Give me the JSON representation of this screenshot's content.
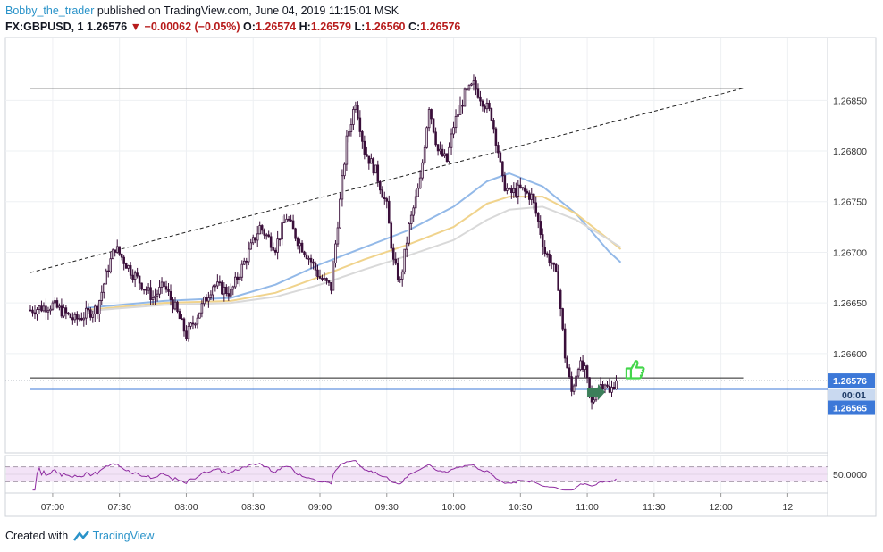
{
  "header": {
    "author": "Bobby_the_trader",
    "published": "published on TradingView.com, June 04, 2019 11:15:01 MSK",
    "symbol": "FX:GBPUSD, 1",
    "last": "1.26576",
    "change": "−0.00062 (−0.05%)",
    "open_label": "O:",
    "open": "1.26574",
    "high_label": "H:",
    "high": "1.26579",
    "low_label": "L:",
    "low": "1.26560",
    "close_label": "C:",
    "close": "1.26576"
  },
  "footer": {
    "created_with": "Created with",
    "brand": "TradingView"
  },
  "colors": {
    "candle_up": "#ffffff",
    "candle_down": "#3a0f3a",
    "wick": "#3a0f3a",
    "ma_fast": "#93b9e8",
    "ma_mid": "#f0d38c",
    "ma_slow": "#d9d9d9",
    "price_line": "#3c78d8",
    "rsi_line": "#8e2aa0",
    "rsi_band": "#f3e3f7",
    "thumb": "#43d64b",
    "marker": "#3c7f5a"
  },
  "chart_data": {
    "type": "candlestick",
    "y_axis_labels": [
      "1.26850",
      "1.26800",
      "1.26750",
      "1.26700",
      "1.26650",
      "1.26600"
    ],
    "ylim": [
      1.26502,
      1.26912
    ],
    "x_axis_labels": [
      "07:00",
      "07:30",
      "08:00",
      "08:30",
      "09:00",
      "09:30",
      "10:00",
      "10:30",
      "11:00",
      "11:30",
      "12:00",
      "12"
    ],
    "last_price_badge": "1.26576",
    "countdown_badge": "00:01",
    "horizontal_line_badge": "1.26565",
    "rsi_label": "50.0000",
    "rsi_range": [
      0,
      100
    ],
    "rsi_bands": [
      30,
      70
    ],
    "close_anchors": [
      [
        "06:50",
        1.26643
      ],
      [
        "07:00",
        1.26648
      ],
      [
        "07:10",
        1.26633
      ],
      [
        "07:20",
        1.26645
      ],
      [
        "07:25",
        1.26685
      ],
      [
        "07:28",
        1.26705
      ],
      [
        "07:35",
        1.26682
      ],
      [
        "07:45",
        1.26655
      ],
      [
        "07:50",
        1.26667
      ],
      [
        "07:55",
        1.26645
      ],
      [
        "08:00",
        1.26618
      ],
      [
        "08:05",
        1.26638
      ],
      [
        "08:12",
        1.26668
      ],
      [
        "08:20",
        1.2666
      ],
      [
        "08:25",
        1.26685
      ],
      [
        "08:33",
        1.26725
      ],
      [
        "08:40",
        1.26705
      ],
      [
        "08:45",
        1.26735
      ],
      [
        "08:50",
        1.26712
      ],
      [
        "08:55",
        1.26695
      ],
      [
        "09:00",
        1.26675
      ],
      [
        "09:05",
        1.26665
      ],
      [
        "09:08",
        1.2673
      ],
      [
        "09:12",
        1.2681
      ],
      [
        "09:16",
        1.2685
      ],
      [
        "09:20",
        1.268
      ],
      [
        "09:25",
        1.2678
      ],
      [
        "09:30",
        1.26745
      ],
      [
        "09:33",
        1.2669
      ],
      [
        "09:36",
        1.2667
      ],
      [
        "09:40",
        1.26725
      ],
      [
        "09:45",
        1.2677
      ],
      [
        "09:49",
        1.26845
      ],
      [
        "09:53",
        1.268
      ],
      [
        "09:57",
        1.2679
      ],
      [
        "10:00",
        1.26825
      ],
      [
        "10:05",
        1.26855
      ],
      [
        "10:09",
        1.26865
      ],
      [
        "10:13",
        1.2685
      ],
      [
        "10:17",
        1.26835
      ],
      [
        "10:20",
        1.268
      ],
      [
        "10:22",
        1.2677
      ],
      [
        "10:25",
        1.26758
      ],
      [
        "10:30",
        1.26762
      ],
      [
        "10:35",
        1.26755
      ],
      [
        "10:38",
        1.2673
      ],
      [
        "10:41",
        1.267
      ],
      [
        "10:44",
        1.2669
      ],
      [
        "10:47",
        1.26668
      ],
      [
        "10:50",
        1.26598
      ],
      [
        "10:53",
        1.26562
      ],
      [
        "10:56",
        1.2659
      ],
      [
        "10:59",
        1.26582
      ],
      [
        "11:02",
        1.2655
      ],
      [
        "11:05",
        1.26568
      ],
      [
        "11:08",
        1.26572
      ],
      [
        "11:10",
        1.2656
      ],
      [
        "11:13",
        1.26576
      ]
    ],
    "moving_averages": [
      {
        "name": "",
        "color": "#93b9e8",
        "points": [
          [
            "07:15",
            1.26645
          ],
          [
            "07:50",
            1.26652
          ],
          [
            "08:20",
            1.26655
          ],
          [
            "08:40",
            1.26668
          ],
          [
            "09:00",
            1.26688
          ],
          [
            "09:20",
            1.26705
          ],
          [
            "09:40",
            1.26722
          ],
          [
            "10:00",
            1.26745
          ],
          [
            "10:15",
            1.2677
          ],
          [
            "10:25",
            1.26778
          ],
          [
            "10:40",
            1.26765
          ],
          [
            "10:55",
            1.26738
          ],
          [
            "11:10",
            1.267
          ],
          [
            "11:15",
            1.2669
          ]
        ]
      },
      {
        "name": "",
        "color": "#f0d38c",
        "points": [
          [
            "07:15",
            1.26643
          ],
          [
            "07:50",
            1.2665
          ],
          [
            "08:20",
            1.26652
          ],
          [
            "08:40",
            1.2666
          ],
          [
            "09:00",
            1.26676
          ],
          [
            "09:20",
            1.26693
          ],
          [
            "09:40",
            1.26708
          ],
          [
            "10:00",
            1.26725
          ],
          [
            "10:15",
            1.26748
          ],
          [
            "10:25",
            1.26755
          ],
          [
            "10:40",
            1.26755
          ],
          [
            "10:55",
            1.26738
          ],
          [
            "11:10",
            1.26712
          ],
          [
            "11:15",
            1.26703
          ]
        ]
      },
      {
        "name": "",
        "color": "#d9d9d9",
        "points": [
          [
            "07:15",
            1.26642
          ],
          [
            "07:50",
            1.26648
          ],
          [
            "08:20",
            1.2665
          ],
          [
            "08:40",
            1.26656
          ],
          [
            "09:00",
            1.26668
          ],
          [
            "09:20",
            1.26683
          ],
          [
            "09:40",
            1.26697
          ],
          [
            "10:00",
            1.26712
          ],
          [
            "10:15",
            1.26732
          ],
          [
            "10:25",
            1.26742
          ],
          [
            "10:40",
            1.26745
          ],
          [
            "10:55",
            1.26732
          ],
          [
            "11:10",
            1.26712
          ],
          [
            "11:15",
            1.26705
          ]
        ]
      }
    ],
    "trendlines": [
      {
        "style": "solid",
        "points": [
          [
            "06:50",
            1.26862
          ],
          [
            "12:10",
            1.26862
          ]
        ]
      },
      {
        "style": "dashed",
        "points": [
          [
            "06:50",
            1.2668
          ],
          [
            "12:10",
            1.26862
          ]
        ]
      },
      {
        "style": "solid",
        "points": [
          [
            "06:50",
            1.26576
          ],
          [
            "12:10",
            1.26576
          ]
        ]
      },
      {
        "style": "price",
        "points": [
          [
            "06:50",
            1.26565
          ],
          [
            "12:45",
            1.26565
          ]
        ]
      }
    ],
    "annotations": [
      {
        "type": "thumbs-up",
        "at": [
          "11:20",
          1.2658
        ]
      },
      {
        "type": "arrow-marker",
        "at": [
          "11:04",
          1.26562
        ]
      }
    ]
  }
}
